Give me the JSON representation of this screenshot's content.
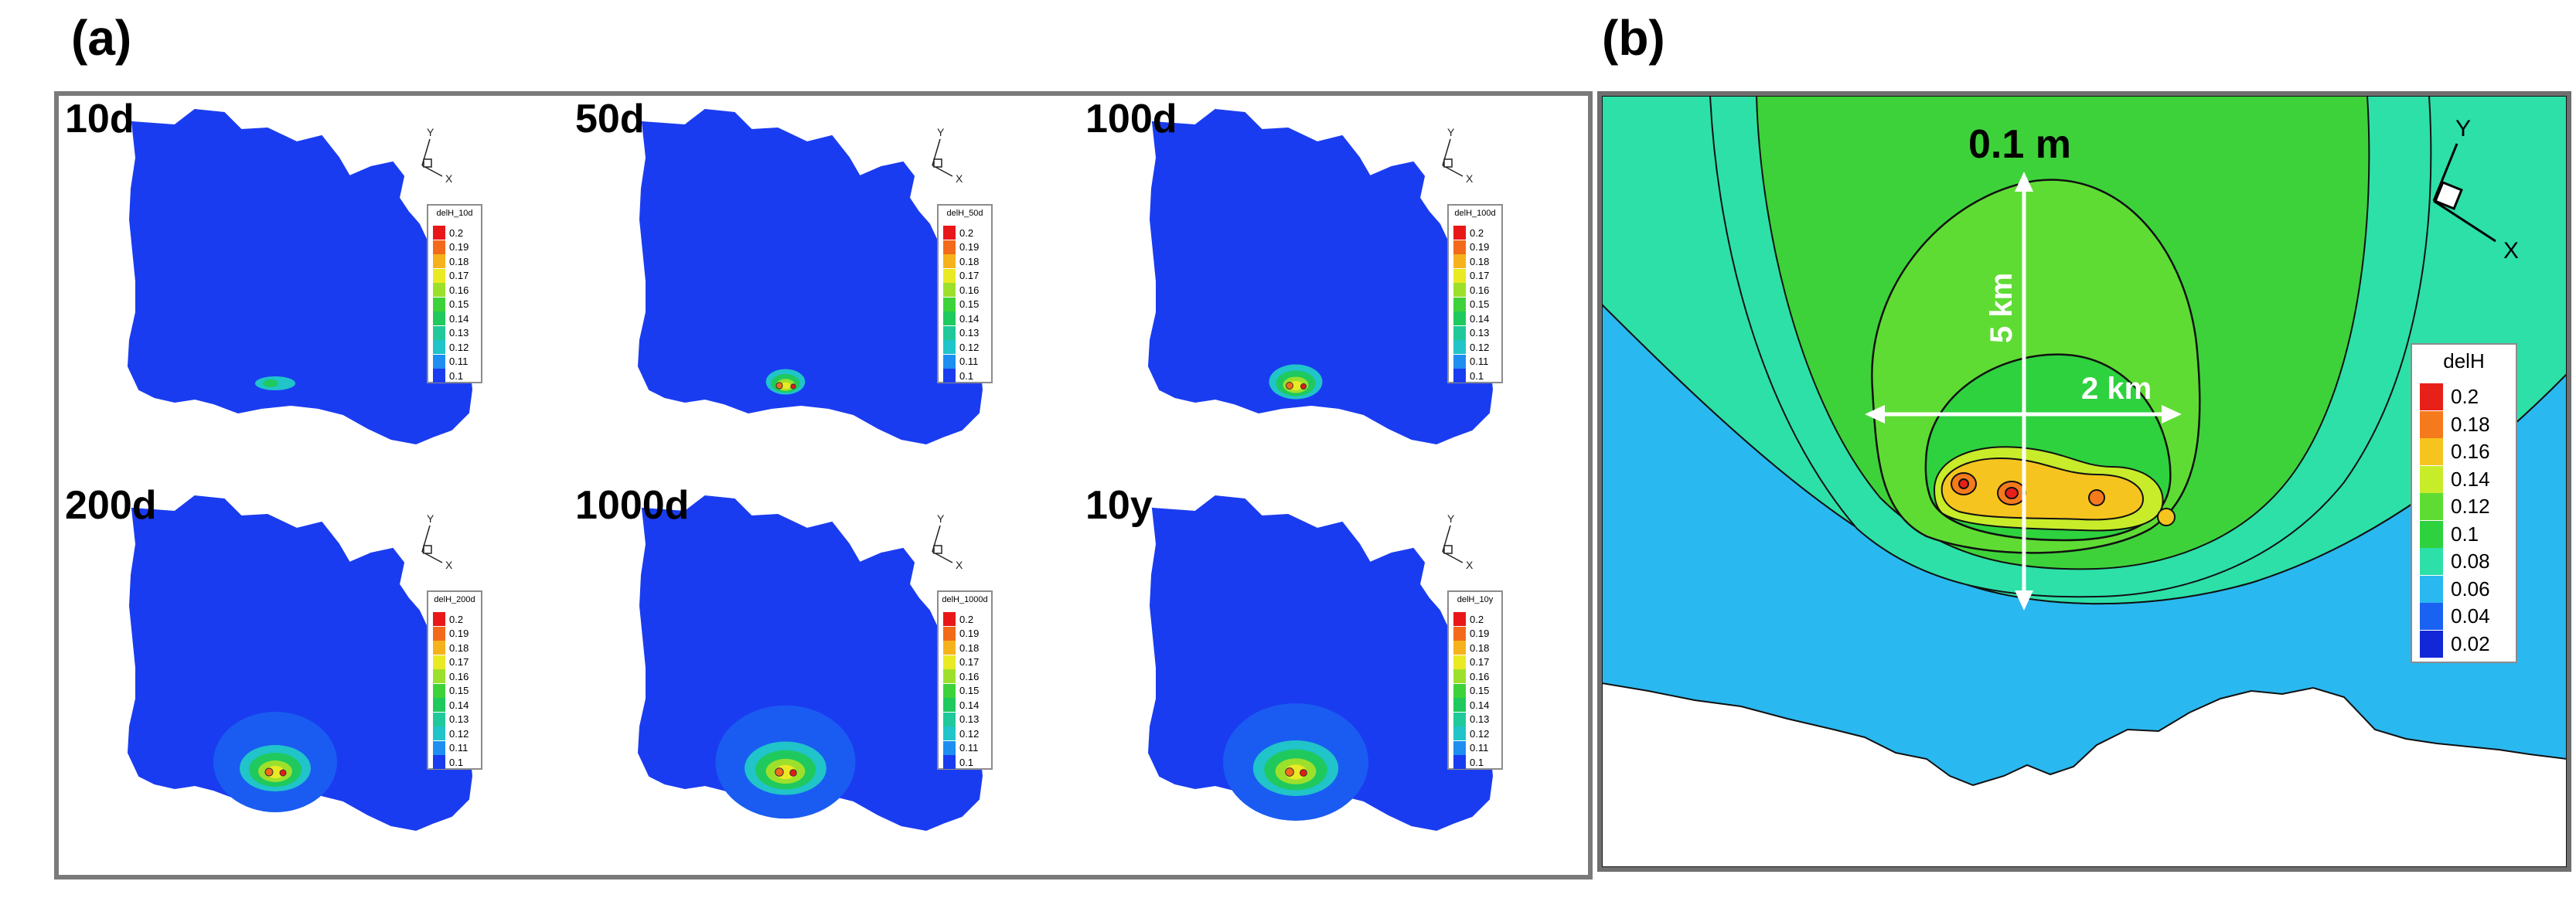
{
  "panels": {
    "a_label": "(a)",
    "b_label": "(b)"
  },
  "subplots": [
    {
      "title": "10d",
      "legend_title": "delH_10d",
      "plume": 0
    },
    {
      "title": "50d",
      "legend_title": "delH_50d",
      "plume": 1
    },
    {
      "title": "100d",
      "legend_title": "delH_100d",
      "plume": 2
    },
    {
      "title": "200d",
      "legend_title": "delH_200d",
      "plume": 3
    },
    {
      "title": "1000d",
      "legend_title": "delH_1000d",
      "plume": 4
    },
    {
      "title": "10y",
      "legend_title": "delH_10y",
      "plume": 5
    }
  ],
  "small_legend_levels": [
    "0.2",
    "0.19",
    "0.18",
    "0.17",
    "0.16",
    "0.15",
    "0.14",
    "0.13",
    "0.12",
    "0.11",
    "0.1"
  ],
  "small_legend_colors": [
    "#e81818",
    "#f26a1a",
    "#f6b21c",
    "#eaea24",
    "#9de02c",
    "#3ed23a",
    "#1fc95e",
    "#21c99a",
    "#20c4c9",
    "#1e8ef0",
    "#1a3cf0"
  ],
  "axes": {
    "x": "X",
    "y": "Y"
  },
  "detail": {
    "legend_title": "delH",
    "levels": [
      "0.2",
      "0.18",
      "0.16",
      "0.14",
      "0.12",
      "0.1",
      "0.08",
      "0.06",
      "0.04",
      "0.02"
    ],
    "colors": [
      "#e8201a",
      "#f57a1c",
      "#f6c41e",
      "#c8ec2a",
      "#5fdc34",
      "#2ed23e",
      "#2de0a8",
      "#2ab8f0",
      "#1a62f2",
      "#1228d6"
    ],
    "annotation_contour": "0.1 m",
    "annotation_vertical": "5 km",
    "annotation_horizontal": "2 km"
  }
}
